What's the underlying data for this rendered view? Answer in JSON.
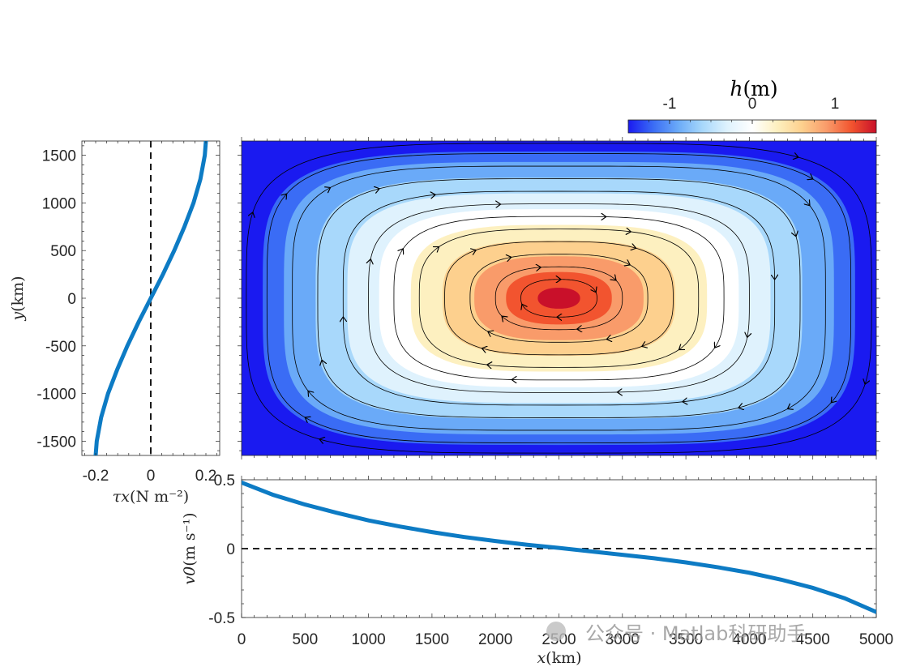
{
  "chart_data": [
    {
      "type": "heatmap",
      "name": "sea-surface-height-contour",
      "description_kind": "filled contour with streamlines of a single-gyre circulation",
      "variable_symbol": "h",
      "variable_unit": "(m)",
      "colorbar": {
        "title_symbol": "h",
        "title_unit": "(m)",
        "range": [
          -1.5,
          1.5
        ],
        "ticks": [
          -1,
          0,
          1
        ],
        "tick_labels": [
          "-1",
          "0",
          "1"
        ],
        "colormap": [
          "#1a1af0",
          "#3a6cf5",
          "#6aaaf8",
          "#a8d8fb",
          "#dff2fd",
          "#ffffff",
          "#fdf0c0",
          "#fdd08e",
          "#f99b6a",
          "#f2542f",
          "#c9102a"
        ]
      },
      "xlim": [
        0,
        5000
      ],
      "ylim": [
        -1650,
        1650
      ],
      "levels": [
        -1.5,
        -1.3,
        -1.1,
        -0.8,
        -0.5,
        -0.2,
        0.1,
        0.4,
        0.7,
        1.0,
        1.3
      ],
      "field": "h(x,y) = 1.55 * cos(pi*y/3300)^? * gyre profile, max 1.5 at (2500, 0)",
      "flow_direction": "clockwise"
    },
    {
      "type": "line",
      "name": "wind-stress-profile",
      "xlabel_symbol": "τx",
      "xlabel_unit": "(N m⁻²)",
      "ylabel_symbol": "y",
      "ylabel_unit": "(km)",
      "xlim": [
        -0.25,
        0.25
      ],
      "ylim": [
        -1650,
        1650
      ],
      "xticks": [
        -0.2,
        0,
        0.2
      ],
      "xtick_labels": [
        "-0.2",
        "0",
        "0.2"
      ],
      "yticks": [
        -1500,
        -1000,
        -500,
        0,
        500,
        1000,
        1500
      ],
      "ytick_labels": [
        "-1500",
        "-1000",
        "-500",
        "0",
        "500",
        "1000",
        "1500"
      ],
      "series": [
        {
          "name": "tau_x",
          "y": [
            -1650,
            -1500,
            -1250,
            -1000,
            -750,
            -500,
            -250,
            0,
            250,
            500,
            750,
            1000,
            1250,
            1500,
            1650
          ],
          "x": [
            -0.2,
            -0.196,
            -0.18,
            -0.155,
            -0.122,
            -0.085,
            -0.044,
            0,
            0.044,
            0.085,
            0.122,
            0.155,
            0.18,
            0.196,
            0.2
          ]
        }
      ],
      "zero_line": "dashed vertical at 0"
    },
    {
      "type": "line",
      "name": "meridional-velocity-profile",
      "xlabel_symbol": "x",
      "xlabel_unit": "(km)",
      "ylabel_symbol": "v0",
      "ylabel_unit": "(m s⁻¹)",
      "xlim": [
        0,
        5000
      ],
      "ylim": [
        -0.5,
        0.5
      ],
      "xticks": [
        0,
        500,
        1000,
        1500,
        2000,
        2500,
        3000,
        3500,
        4000,
        4500,
        5000
      ],
      "xtick_labels": [
        "0",
        "500",
        "1000",
        "1500",
        "2000",
        "2500",
        "3000",
        "3500",
        "4000",
        "4500",
        "5000"
      ],
      "yticks": [
        -0.5,
        0,
        0.5
      ],
      "ytick_labels": [
        "-0.5",
        "0",
        "0.5"
      ],
      "series": [
        {
          "name": "v0",
          "x": [
            0,
            250,
            500,
            750,
            1000,
            1250,
            1500,
            1750,
            2000,
            2250,
            2500,
            2750,
            3000,
            3250,
            3500,
            3750,
            4000,
            4250,
            4500,
            4750,
            5000
          ],
          "y": [
            0.48,
            0.39,
            0.32,
            0.26,
            0.205,
            0.16,
            0.12,
            0.085,
            0.055,
            0.028,
            0.005,
            -0.02,
            -0.045,
            -0.07,
            -0.1,
            -0.135,
            -0.175,
            -0.225,
            -0.285,
            -0.36,
            -0.46
          ]
        }
      ],
      "zero_line": "dashed horizontal at 0"
    }
  ],
  "watermark": {
    "text": "公众号 · Matlab科研助手"
  }
}
